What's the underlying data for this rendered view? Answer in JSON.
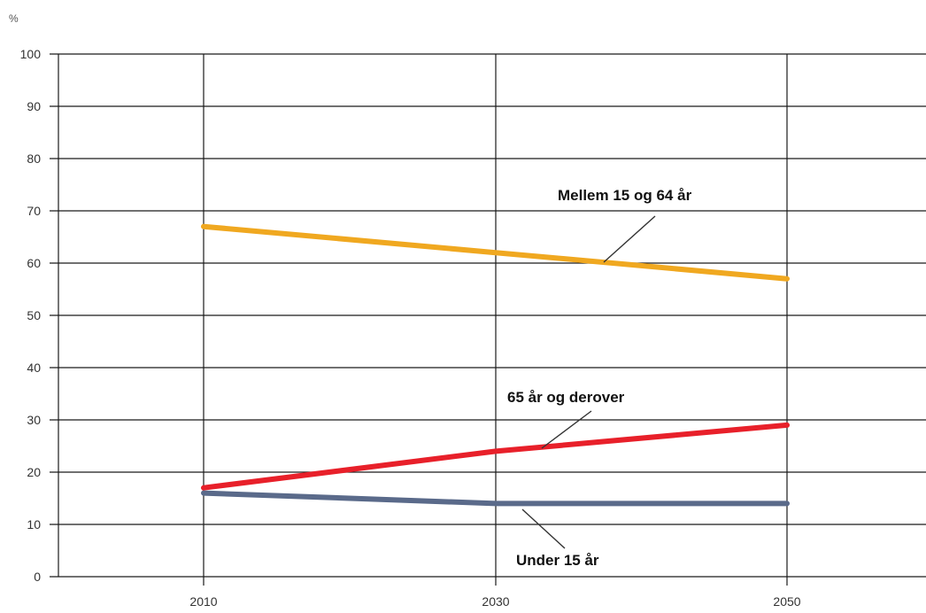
{
  "chart_data": {
    "type": "line",
    "ylabel": "%",
    "x": [
      2010,
      2030,
      2050
    ],
    "x_tick_labels": [
      "2010",
      "2030",
      "2050"
    ],
    "ylim": [
      0,
      100
    ],
    "y_ticks": [
      0,
      10,
      20,
      30,
      40,
      50,
      60,
      70,
      80,
      90,
      100
    ],
    "grid": true,
    "legend": "inline labels with leader lines",
    "series": [
      {
        "name": "Mellem 15 og 64 år",
        "values": [
          67,
          62,
          57
        ],
        "color": "#f0a820"
      },
      {
        "name": "65 år og derover",
        "values": [
          17,
          24,
          29
        ],
        "color": "#e8202a"
      },
      {
        "name": "Under 15 år",
        "values": [
          16,
          14,
          14
        ],
        "color": "#5a6a8a"
      }
    ]
  }
}
